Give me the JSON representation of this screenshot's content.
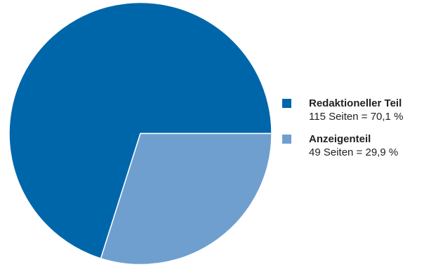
{
  "chart_data": {
    "type": "pie",
    "slices": [
      {
        "label": "Redaktioneller Teil",
        "value": 115,
        "percent": 70.1,
        "detail": "115 Seiten = 70,1 %",
        "color": "#0066aa"
      },
      {
        "label": "Anzeigenteil",
        "value": 49,
        "percent": 29.9,
        "detail": "49 Seiten = 29,9 %",
        "color": "#6f9fcf"
      }
    ],
    "legend_position": "right"
  }
}
